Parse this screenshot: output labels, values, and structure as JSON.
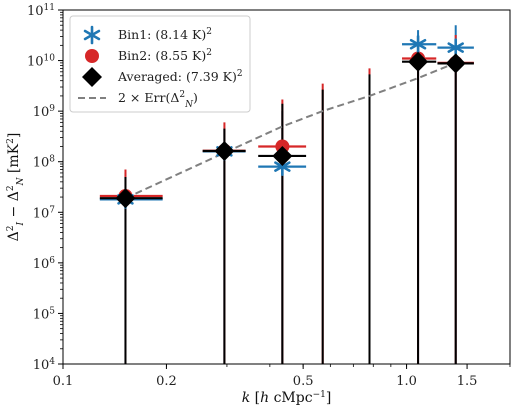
{
  "chart_data": {
    "type": "scatter",
    "xscale": "log",
    "yscale": "log",
    "xlim": [
      0.1,
      2.0
    ],
    "ylim": [
      10000,
      100000000000
    ],
    "xlabel": "k [h cMpc⁻¹]",
    "ylabel": "Δ²_I − Δ²_N [mK²]",
    "xticks": [
      {
        "value": 0.1,
        "label": "0.1"
      },
      {
        "value": 0.2,
        "label": "0.2"
      },
      {
        "value": 0.5,
        "label": "0.5"
      },
      {
        "value": 1.0,
        "label": "1.0"
      },
      {
        "value": 1.5,
        "label": "1.5"
      }
    ],
    "yticks": [
      {
        "exp": 4
      },
      {
        "exp": 5
      },
      {
        "exp": 6
      },
      {
        "exp": 7
      },
      {
        "exp": 8
      },
      {
        "exp": 9
      },
      {
        "exp": 10
      },
      {
        "exp": 11
      }
    ],
    "legend_position": "top-left",
    "colors": {
      "bin1": "#1f77b4",
      "bin2": "#d62728",
      "averaged": "#000000",
      "err": "#808080"
    },
    "series": [
      {
        "name": "Bin1: (8.14 K)²",
        "marker": "asterisk",
        "points": [
          {
            "x": 0.152,
            "y": 18000000,
            "xlo": 0.128,
            "xhi": 0.195,
            "yup": 60000000
          },
          {
            "x": 0.295,
            "y": 160000000,
            "xlo": 0.255,
            "xhi": 0.34,
            "yup": 450000000
          },
          {
            "x": 0.435,
            "y": 80000000,
            "xlo": 0.37,
            "xhi": 0.51,
            "yup": 1000000000
          },
          {
            "x": 1.08,
            "y": 21000000000,
            "xlo": 0.97,
            "xhi": 1.22,
            "yup": 40000000000
          },
          {
            "x": 1.39,
            "y": 18000000000,
            "xlo": 1.23,
            "xhi": 1.57,
            "yup": 50000000000
          }
        ]
      },
      {
        "name": "Bin2: (8.55 K)²",
        "marker": "circle",
        "points": [
          {
            "x": 0.152,
            "y": 21000000,
            "xlo": 0.128,
            "xhi": 0.195,
            "yup": 70000000
          },
          {
            "x": 0.295,
            "y": 165000000,
            "xlo": 0.255,
            "xhi": 0.34,
            "yup": 600000000
          },
          {
            "x": 0.435,
            "y": 200000000,
            "xlo": 0.37,
            "xhi": 0.51,
            "yup": 1700000000
          },
          {
            "x": 1.08,
            "y": 11000000000,
            "xlo": 0.97,
            "xhi": 1.22,
            "yup": 30000000000
          },
          {
            "x": 1.39,
            "y": 9000000000,
            "xlo": 1.23,
            "xhi": 1.57,
            "yup": 32000000000
          }
        ]
      },
      {
        "name": "Averaged: (7.39 K)²",
        "marker": "diamond",
        "points": [
          {
            "x": 0.152,
            "y": 19000000,
            "xlo": 0.128,
            "xhi": 0.195,
            "yup": 50000000
          },
          {
            "x": 0.295,
            "y": 163000000,
            "xlo": 0.255,
            "xhi": 0.34,
            "yup": 450000000
          },
          {
            "x": 0.435,
            "y": 130000000,
            "xlo": 0.37,
            "xhi": 0.51,
            "yup": 1400000000
          },
          {
            "x": 1.08,
            "y": 9500000000,
            "xlo": 0.97,
            "xhi": 1.22,
            "yup": 25000000000
          },
          {
            "x": 1.39,
            "y": 8800000000,
            "xlo": 1.23,
            "xhi": 1.57,
            "yup": 25000000000
          }
        ]
      }
    ],
    "averaged_only_bars": [
      {
        "x": 0.57,
        "yup": 3500000000
      },
      {
        "x": 0.78,
        "yup": 7000000000
      }
    ],
    "err_line": {
      "name": "2 × Err(Δ²_N)",
      "style": "dashed",
      "x": [
        0.152,
        0.295,
        0.435,
        0.57,
        0.78,
        1.08,
        1.39
      ],
      "y": [
        19000000,
        150000000,
        500000000,
        1000000000,
        2000000000,
        4500000000,
        9000000000
      ]
    }
  }
}
